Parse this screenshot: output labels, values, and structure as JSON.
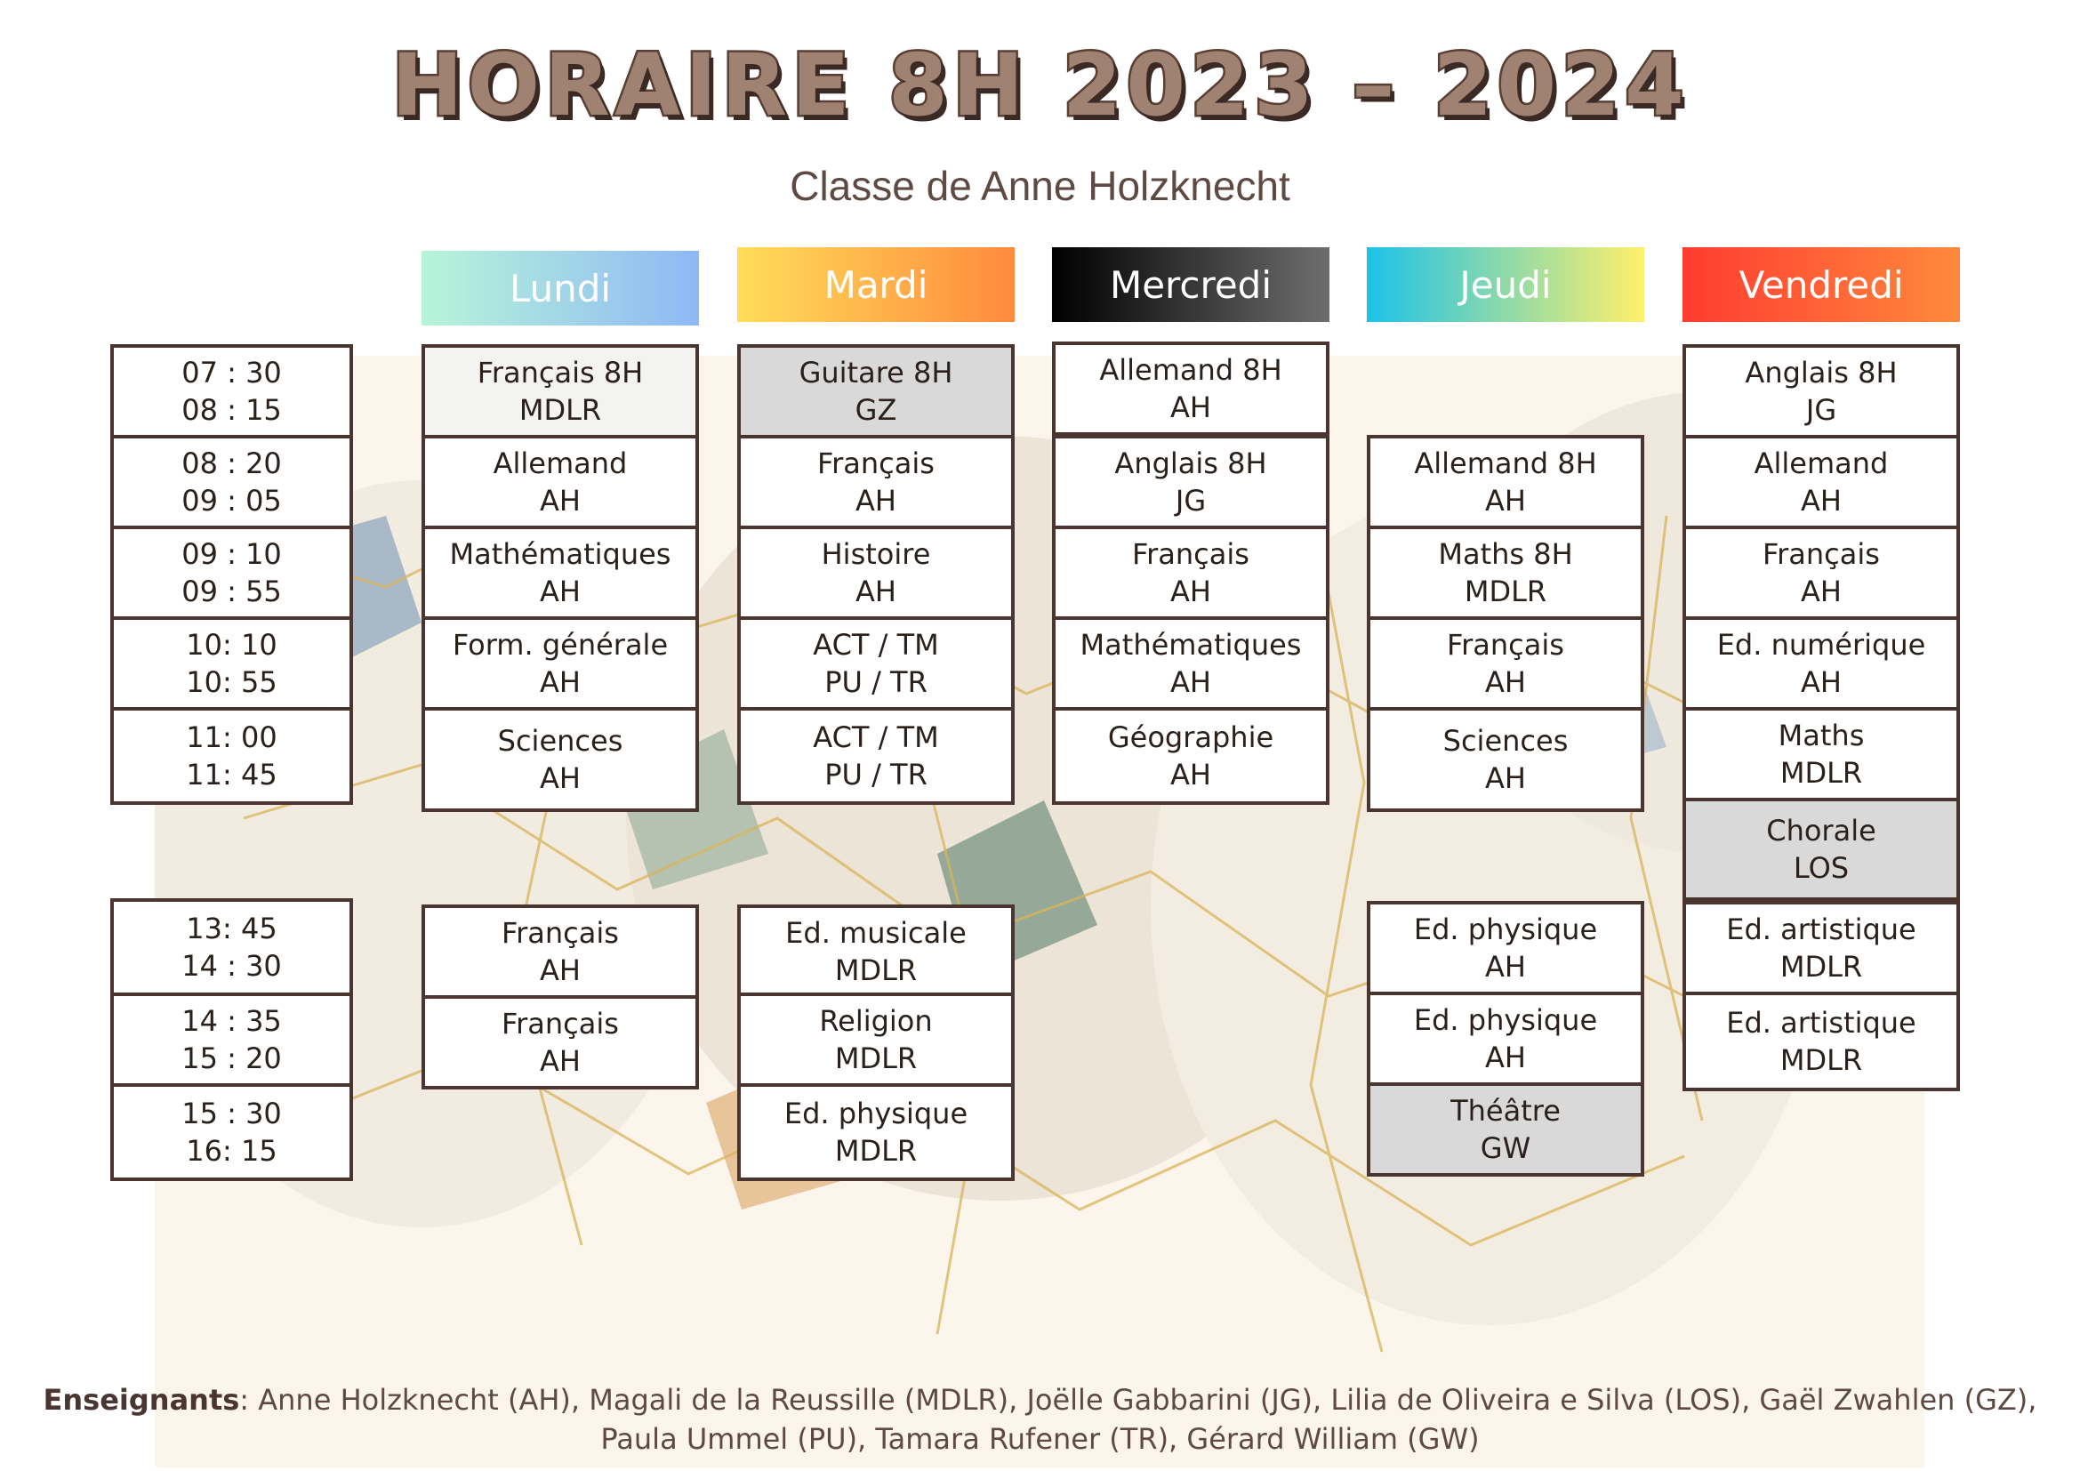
{
  "title": "HORAIRE 8H 2023 – 2024",
  "subtitle": "Classe de Anne Holzknecht",
  "days": [
    {
      "label": "Lundi",
      "gradient": [
        "#b7f5d8",
        "#8fb8f5"
      ]
    },
    {
      "label": "Mardi",
      "gradient": [
        "#ffdd5a",
        "#ff8a3c"
      ]
    },
    {
      "label": "Mercredi",
      "gradient": [
        "#000000",
        "#6e6e6e"
      ]
    },
    {
      "label": "Jeudi",
      "gradient": [
        "#1dc2e8",
        "#fff06a"
      ]
    },
    {
      "label": "Vendredi",
      "gradient": [
        "#ff3b30",
        "#ff8a3c"
      ]
    }
  ],
  "time_slots": [
    {
      "start": "07 : 30",
      "end": "08 : 15"
    },
    {
      "start": "08 : 20",
      "end": "09 : 05"
    },
    {
      "start": "09 : 10",
      "end": "09 : 55"
    },
    {
      "start": "10: 10",
      "end": "10: 55"
    },
    {
      "start": "11: 00",
      "end": "11: 45"
    },
    {
      "start": "13: 45",
      "end": "14 : 30"
    },
    {
      "start": "14 : 35",
      "end": "15 : 20"
    },
    {
      "start": "15 : 30",
      "end": "16: 15"
    }
  ],
  "schedule": {
    "lundi": [
      {
        "subject": "Français 8H",
        "teacher": "MDLR"
      },
      {
        "subject": "Allemand",
        "teacher": "AH"
      },
      {
        "subject": "Mathématiques",
        "teacher": "AH"
      },
      {
        "subject": "Form. générale",
        "teacher": "AH"
      },
      {
        "subject": "Sciences",
        "teacher": "AH"
      },
      {
        "subject": "Français",
        "teacher": "AH"
      },
      {
        "subject": "Français",
        "teacher": "AH"
      }
    ],
    "mardi": [
      {
        "subject": "Guitare 8H",
        "teacher": "GZ"
      },
      {
        "subject": "Français",
        "teacher": "AH"
      },
      {
        "subject": "Histoire",
        "teacher": "AH"
      },
      {
        "subject": "ACT / TM",
        "teacher": "PU / TR"
      },
      {
        "subject": "ACT / TM",
        "teacher": "PU / TR"
      },
      {
        "subject": "Ed. musicale",
        "teacher": "MDLR"
      },
      {
        "subject": "Religion",
        "teacher": "MDLR"
      },
      {
        "subject": "Ed. physique",
        "teacher": "MDLR"
      }
    ],
    "mercredi": [
      {
        "subject": "Allemand 8H",
        "teacher": "AH"
      },
      {
        "subject": "Anglais 8H",
        "teacher": "JG"
      },
      {
        "subject": "Français",
        "teacher": "AH"
      },
      {
        "subject": "Mathématiques",
        "teacher": "AH"
      },
      {
        "subject": "Géographie",
        "teacher": "AH"
      }
    ],
    "jeudi": [
      {
        "subject": "Allemand 8H",
        "teacher": "AH"
      },
      {
        "subject": "Maths 8H",
        "teacher": "MDLR"
      },
      {
        "subject": "Français",
        "teacher": "AH"
      },
      {
        "subject": "Sciences",
        "teacher": "AH"
      },
      {
        "subject": "Ed. physique",
        "teacher": "AH"
      },
      {
        "subject": "Ed. physique",
        "teacher": "AH"
      },
      {
        "subject": "Théâtre",
        "teacher": "GW"
      }
    ],
    "vendredi": [
      {
        "subject": "Anglais 8H",
        "teacher": "JG"
      },
      {
        "subject": "Allemand",
        "teacher": "AH"
      },
      {
        "subject": "Français",
        "teacher": "AH"
      },
      {
        "subject": "Ed. numérique",
        "teacher": "AH"
      },
      {
        "subject": "Maths",
        "teacher": "MDLR"
      },
      {
        "subject": "Chorale",
        "teacher": "LOS"
      },
      {
        "subject": "Ed. artistique",
        "teacher": "MDLR"
      },
      {
        "subject": "Ed. artistique",
        "teacher": "MDLR"
      }
    ]
  },
  "footer": {
    "label": "Enseignants",
    "line1": ": Anne Holzknecht (AH), Magali de la Reussille (MDLR), Joëlle Gabbarini (JG), Lilia de Oliveira e Silva (LOS), Gaël Zwahlen (GZ),",
    "line2": "Paula Ummel (PU), Tamara Rufener (TR), Gérard William (GW)"
  },
  "colors": {
    "border": "#4a3530",
    "grey_cell": "#d9d9d9",
    "title_fill": "#a08272",
    "title_stroke": "#5a3f34"
  }
}
